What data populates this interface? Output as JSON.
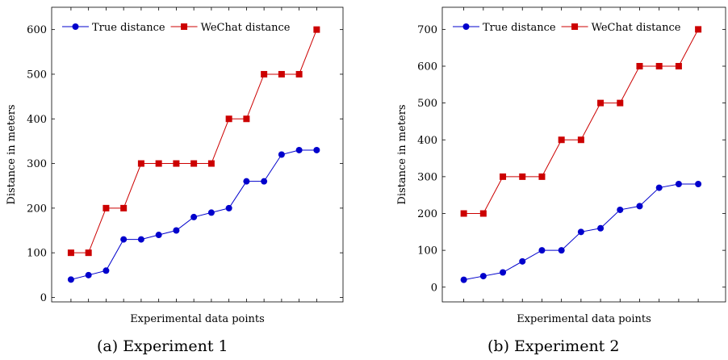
{
  "chart_data": [
    {
      "type": "line",
      "caption": "(a) Experiment 1",
      "xlabel": "Experimental data points",
      "ylabel": "Distance in meters",
      "ylim": [
        -10,
        650
      ],
      "yticks": [
        0,
        100,
        200,
        300,
        400,
        500,
        600
      ],
      "legend": "top-left",
      "x": [
        1,
        2,
        3,
        4,
        5,
        6,
        7,
        8,
        9,
        10,
        11,
        12,
        13,
        14,
        15
      ],
      "series": [
        {
          "name": "True distance",
          "color": "#0000cc",
          "marker": "circle",
          "values": [
            40,
            50,
            60,
            130,
            130,
            140,
            150,
            180,
            190,
            200,
            260,
            260,
            320,
            330,
            330
          ]
        },
        {
          "name": "WeChat distance",
          "color": "#cc0000",
          "marker": "square",
          "values": [
            100,
            100,
            200,
            200,
            300,
            300,
            300,
            300,
            300,
            400,
            400,
            500,
            500,
            500,
            600
          ]
        }
      ]
    },
    {
      "type": "line",
      "caption": "(b) Experiment 2",
      "xlabel": "Experimental data points",
      "ylabel": "Distance in meters",
      "ylim": [
        -40,
        760
      ],
      "yticks": [
        0,
        100,
        200,
        300,
        400,
        500,
        600,
        700
      ],
      "legend": "top-left",
      "x": [
        1,
        2,
        3,
        4,
        5,
        6,
        7,
        8,
        9,
        10,
        11,
        12,
        13
      ],
      "series": [
        {
          "name": "True distance",
          "color": "#0000cc",
          "marker": "circle",
          "values": [
            20,
            30,
            40,
            70,
            100,
            100,
            150,
            160,
            210,
            220,
            270,
            280,
            280
          ]
        },
        {
          "name": "WeChat distance",
          "color": "#cc0000",
          "marker": "square",
          "values": [
            200,
            200,
            300,
            300,
            300,
            400,
            400,
            500,
            500,
            600,
            600,
            600,
            700
          ]
        }
      ]
    }
  ]
}
